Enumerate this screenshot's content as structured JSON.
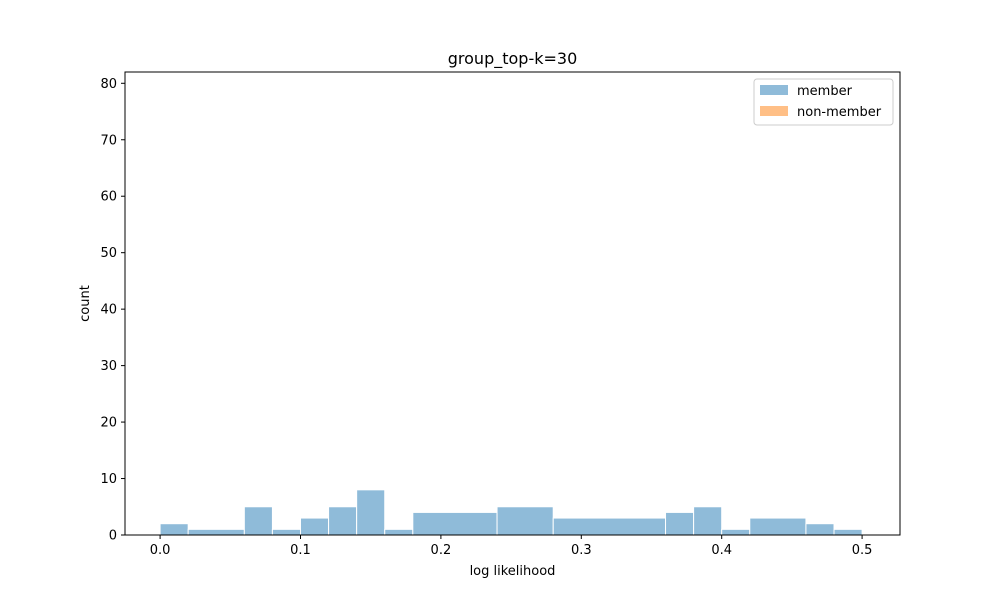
{
  "chart_data": {
    "type": "bar",
    "title": "group_top-k=30",
    "xlabel": "log likelihood",
    "ylabel": "count",
    "xlim": [
      -0.025,
      0.527
    ],
    "ylim": [
      0,
      82
    ],
    "x_ticks": [
      0.0,
      0.1,
      0.2,
      0.3,
      0.4,
      0.5
    ],
    "x_tick_labels": [
      "0.0",
      "0.1",
      "0.2",
      "0.3",
      "0.4",
      "0.5"
    ],
    "y_ticks": [
      0,
      10,
      20,
      30,
      40,
      50,
      60,
      70,
      80
    ],
    "y_tick_labels": [
      "0",
      "10",
      "20",
      "30",
      "40",
      "50",
      "60",
      "70",
      "80"
    ],
    "grid": false,
    "legend_position": "upper right",
    "series": [
      {
        "name": "member",
        "color": "#8fbbd9",
        "bins": [
          {
            "x0": 0.0,
            "x1": 0.02,
            "count": 2
          },
          {
            "x0": 0.02,
            "x1": 0.06,
            "count": 1
          },
          {
            "x0": 0.06,
            "x1": 0.08,
            "count": 5
          },
          {
            "x0": 0.08,
            "x1": 0.1,
            "count": 1
          },
          {
            "x0": 0.1,
            "x1": 0.12,
            "count": 3
          },
          {
            "x0": 0.12,
            "x1": 0.14,
            "count": 5
          },
          {
            "x0": 0.14,
            "x1": 0.16,
            "count": 8
          },
          {
            "x0": 0.16,
            "x1": 0.18,
            "count": 1
          },
          {
            "x0": 0.18,
            "x1": 0.24,
            "count": 4
          },
          {
            "x0": 0.24,
            "x1": 0.28,
            "count": 5
          },
          {
            "x0": 0.28,
            "x1": 0.36,
            "count": 3
          },
          {
            "x0": 0.36,
            "x1": 0.38,
            "count": 4
          },
          {
            "x0": 0.38,
            "x1": 0.4,
            "count": 5
          },
          {
            "x0": 0.4,
            "x1": 0.42,
            "count": 1
          },
          {
            "x0": 0.42,
            "x1": 0.46,
            "count": 3
          },
          {
            "x0": 0.46,
            "x1": 0.48,
            "count": 2
          },
          {
            "x0": 0.48,
            "x1": 0.5,
            "count": 1
          }
        ]
      },
      {
        "name": "non-member",
        "color": "#ffbf86",
        "bins": []
      }
    ]
  }
}
